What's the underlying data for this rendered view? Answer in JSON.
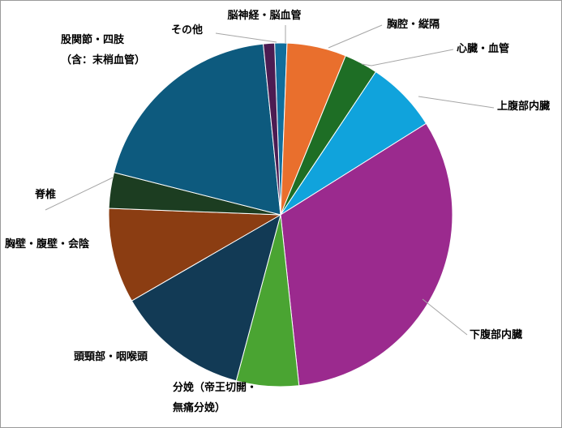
{
  "chart_data": {
    "type": "pie",
    "title": "",
    "start_angle_deg": -2,
    "legend": "none",
    "slices": [
      {
        "label": "脳神経・脳血管",
        "value": 1.2,
        "color": "#106e9c"
      },
      {
        "label": "胸腔・縦隔",
        "value": 5.8,
        "color": "#e96f2d"
      },
      {
        "label": "心臓・血管",
        "value": 3.3,
        "color": "#1e6e25"
      },
      {
        "label": "上腹部内臓",
        "value": 7.0,
        "color": "#10a3dc"
      },
      {
        "label": "下腹部内臓",
        "value": 33.5,
        "color": "#9b2a8e"
      },
      {
        "label": "分娩（帝王切開・無痛分娩）",
        "lines": [
          "分娩（帝王切開・",
          "無痛分娩）"
        ],
        "value": 6.1,
        "color": "#4aa432"
      },
      {
        "label": "頭頸部・咽喉頭",
        "value": 13.0,
        "color": "#123a55"
      },
      {
        "label": "胸壁・腹壁・会陰",
        "value": 9.3,
        "color": "#8b3d12"
      },
      {
        "label": "脊椎",
        "value": 3.5,
        "color": "#1c3d21"
      },
      {
        "label": "股関節・四肢（含：末梢血管）",
        "lines": [
          "股関節・四肢",
          "（含：末梢血管）"
        ],
        "value": 20.2,
        "color": "#0d5a7e"
      },
      {
        "label": "その他",
        "value": 1.1,
        "color": "#4c1c52"
      }
    ]
  }
}
